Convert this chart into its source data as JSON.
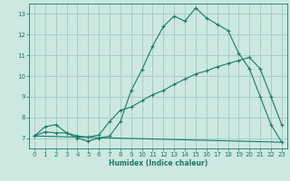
{
  "background_color": "#cce8e0",
  "grid_color": "#a8cccc",
  "line_color": "#1a7a6a",
  "xlabel": "Humidex (Indice chaleur)",
  "ylim": [
    6.5,
    13.5
  ],
  "xlim": [
    -0.5,
    23.5
  ],
  "yticks": [
    7,
    8,
    9,
    10,
    11,
    12,
    13
  ],
  "xticks": [
    0,
    1,
    2,
    3,
    4,
    5,
    6,
    7,
    8,
    9,
    10,
    11,
    12,
    13,
    14,
    15,
    16,
    17,
    18,
    19,
    20,
    21,
    22,
    23
  ],
  "curve1_x": [
    0,
    1,
    2,
    3,
    4,
    5,
    6,
    7,
    8,
    9,
    10,
    11,
    12,
    13,
    14,
    15,
    16,
    17,
    18,
    19,
    20,
    21,
    22,
    23
  ],
  "curve1_y": [
    7.1,
    7.3,
    7.25,
    7.25,
    7.0,
    6.85,
    7.0,
    7.1,
    7.8,
    9.3,
    10.3,
    11.45,
    12.4,
    12.9,
    12.65,
    13.3,
    12.8,
    12.5,
    12.2,
    11.1,
    10.35,
    9.0,
    7.65,
    6.8
  ],
  "curve2_x": [
    0,
    1,
    2,
    3,
    4,
    5,
    6,
    7,
    8,
    9,
    10,
    11,
    12,
    13,
    14,
    15,
    16,
    17,
    18,
    19,
    20,
    21,
    22,
    23
  ],
  "curve2_y": [
    7.1,
    7.55,
    7.65,
    7.25,
    7.1,
    7.05,
    7.15,
    7.8,
    8.35,
    8.5,
    8.8,
    9.1,
    9.3,
    9.6,
    9.85,
    10.1,
    10.25,
    10.45,
    10.6,
    10.75,
    10.9,
    10.35,
    9.0,
    7.65
  ],
  "curve3_x": [
    0,
    23
  ],
  "curve3_y": [
    7.1,
    6.8
  ]
}
